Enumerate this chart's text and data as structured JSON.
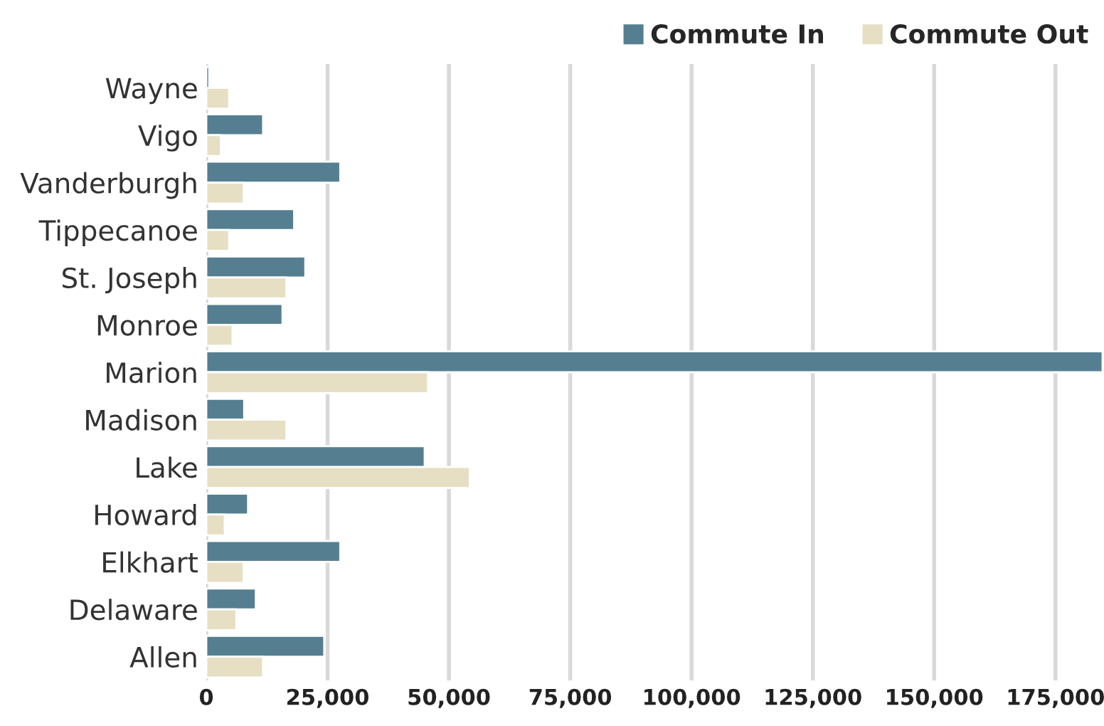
{
  "chart_data": {
    "type": "bar",
    "orientation": "horizontal",
    "categories": [
      "Wayne",
      "Vigo",
      "Vanderburgh",
      "Tippecanoe",
      "St. Joseph",
      "Monroe",
      "Marion",
      "Madison",
      "Lake",
      "Howard",
      "Elkhart",
      "Delaware",
      "Allen"
    ],
    "series": [
      {
        "name": "Commute In",
        "color": "#557f91",
        "values": [
          600,
          11700,
          27600,
          18100,
          20400,
          15700,
          184700,
          7800,
          45000,
          8600,
          27600,
          10200,
          24300
        ]
      },
      {
        "name": "Commute Out",
        "color": "#e6dfc3",
        "values": [
          4700,
          3000,
          7700,
          4700,
          16500,
          5400,
          45700,
          16500,
          54300,
          3800,
          7700,
          6200,
          11700
        ]
      }
    ],
    "xlim": [
      0,
      185000
    ],
    "xticks": [
      {
        "value": 0,
        "label": "0"
      },
      {
        "value": 25000,
        "label": "25,000"
      },
      {
        "value": 50000,
        "label": "50,000"
      },
      {
        "value": 75000,
        "label": "75,000"
      },
      {
        "value": 100000,
        "label": "100,000"
      },
      {
        "value": 125000,
        "label": "125,000"
      },
      {
        "value": 150000,
        "label": "150,000"
      },
      {
        "value": 175000,
        "label": "175,000"
      }
    ],
    "grid": "x",
    "legend": "top right"
  }
}
